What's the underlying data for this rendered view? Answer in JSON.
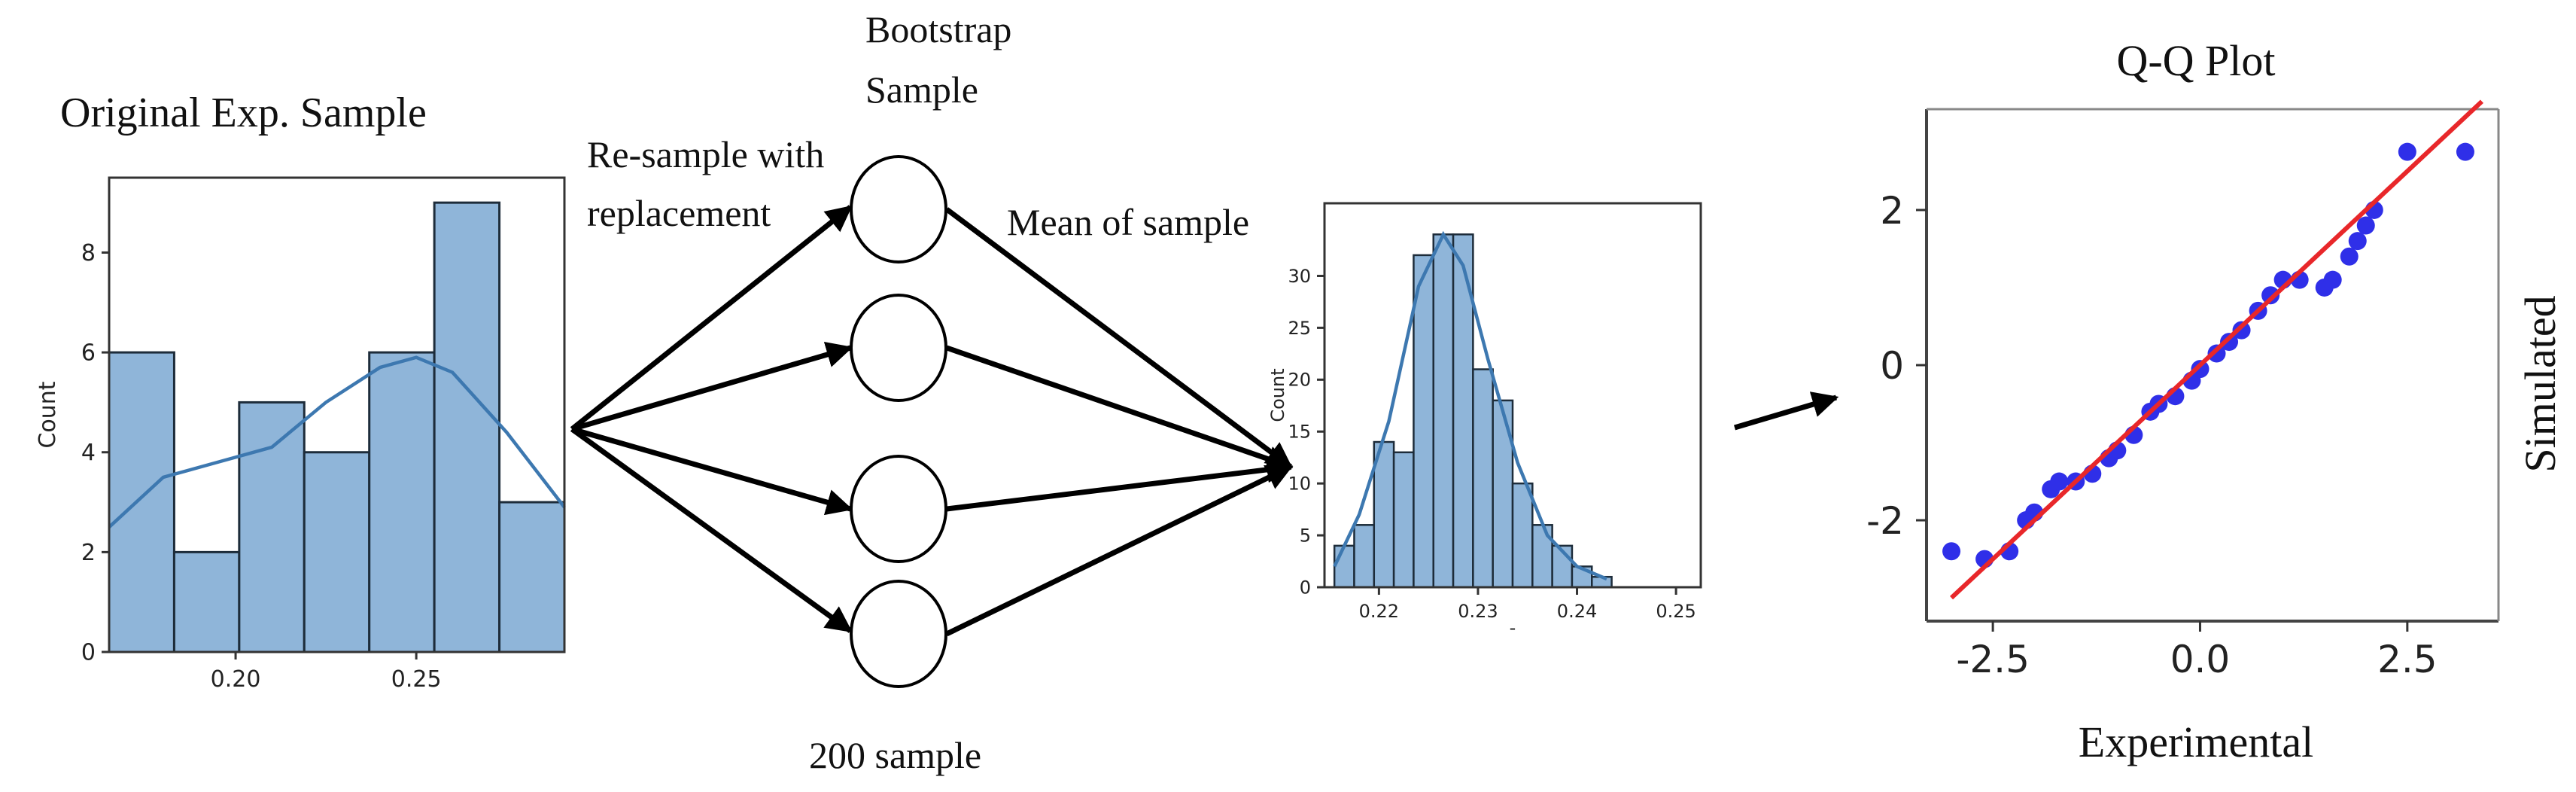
{
  "labels": {
    "original_sample": "Original Exp. Sample",
    "resample_line1": "Re-sample with",
    "resample_line2": "replacement",
    "bootstrap_line1": "Bootstrap",
    "bootstrap_line2": "Sample",
    "mean_of_sample": "Mean of sample",
    "sample_count": "200 sample",
    "qq_title": "Q-Q Plot",
    "qq_xlabel": "Experimental",
    "qq_ylabel": "Simulated"
  },
  "chart_data": [
    {
      "type": "bar",
      "title": "",
      "xlabel": "",
      "ylabel": "Count",
      "bins": [
        {
          "start": 0.165,
          "end": 0.183,
          "count": 6
        },
        {
          "start": 0.183,
          "end": 0.201,
          "count": 2
        },
        {
          "start": 0.201,
          "end": 0.219,
          "count": 5
        },
        {
          "start": 0.219,
          "end": 0.237,
          "count": 4
        },
        {
          "start": 0.237,
          "end": 0.255,
          "count": 6
        },
        {
          "start": 0.255,
          "end": 0.273,
          "count": 9
        },
        {
          "start": 0.273,
          "end": 0.291,
          "count": 3
        }
      ],
      "xlim": [
        0.165,
        0.291
      ],
      "ylim": [
        0,
        9.5
      ],
      "xticks": [
        "0.20",
        "0.25"
      ],
      "yticks": [
        "0",
        "2",
        "4",
        "6",
        "8"
      ],
      "kde": [
        [
          0.165,
          2.5
        ],
        [
          0.18,
          3.5
        ],
        [
          0.195,
          3.8
        ],
        [
          0.21,
          4.1
        ],
        [
          0.225,
          5.0
        ],
        [
          0.24,
          5.7
        ],
        [
          0.25,
          5.9
        ],
        [
          0.26,
          5.6
        ],
        [
          0.275,
          4.4
        ],
        [
          0.291,
          2.9
        ]
      ]
    },
    {
      "type": "bar",
      "title": "",
      "xlabel": "-",
      "ylabel": "Count",
      "bins": [
        {
          "start": 0.2155,
          "end": 0.2175,
          "count": 4
        },
        {
          "start": 0.2175,
          "end": 0.2195,
          "count": 6
        },
        {
          "start": 0.2195,
          "end": 0.2215,
          "count": 14
        },
        {
          "start": 0.2215,
          "end": 0.2235,
          "count": 13
        },
        {
          "start": 0.2235,
          "end": 0.2255,
          "count": 32
        },
        {
          "start": 0.2255,
          "end": 0.2275,
          "count": 34
        },
        {
          "start": 0.2275,
          "end": 0.2295,
          "count": 34
        },
        {
          "start": 0.2295,
          "end": 0.2315,
          "count": 21
        },
        {
          "start": 0.2315,
          "end": 0.2335,
          "count": 18
        },
        {
          "start": 0.2335,
          "end": 0.2355,
          "count": 10
        },
        {
          "start": 0.2355,
          "end": 0.2375,
          "count": 6
        },
        {
          "start": 0.2375,
          "end": 0.2395,
          "count": 4
        },
        {
          "start": 0.2395,
          "end": 0.2415,
          "count": 2
        },
        {
          "start": 0.2415,
          "end": 0.2435,
          "count": 1
        }
      ],
      "xlim": [
        0.2145,
        0.2525
      ],
      "ylim": [
        0,
        37
      ],
      "xticks": [
        "0.22",
        "0.23",
        "0.24",
        "0.25"
      ],
      "yticks": [
        "0",
        "5",
        "10",
        "15",
        "20",
        "25",
        "30"
      ],
      "kde": [
        [
          0.2155,
          2
        ],
        [
          0.218,
          7
        ],
        [
          0.221,
          16
        ],
        [
          0.224,
          29
        ],
        [
          0.2265,
          34
        ],
        [
          0.2285,
          31
        ],
        [
          0.231,
          22
        ],
        [
          0.234,
          12
        ],
        [
          0.237,
          5
        ],
        [
          0.24,
          2
        ],
        [
          0.243,
          0.8
        ]
      ]
    },
    {
      "type": "scatter",
      "title": "Q-Q Plot",
      "xlabel": "Experimental",
      "ylabel": "Simulated",
      "xlim": [
        -3.3,
        3.6
      ],
      "ylim": [
        -3.3,
        3.3
      ],
      "xticks": [
        "-2.5",
        "0.0",
        "2.5"
      ],
      "yticks": [
        "-2",
        "0",
        "2"
      ],
      "line": {
        "x": [
          -3.0,
          3.4
        ],
        "y": [
          -3.0,
          3.4
        ]
      },
      "points": [
        [
          -3.0,
          -2.4
        ],
        [
          -2.6,
          -2.5
        ],
        [
          -2.3,
          -2.4
        ],
        [
          -2.1,
          -2.0
        ],
        [
          -2.0,
          -1.9
        ],
        [
          -1.8,
          -1.6
        ],
        [
          -1.7,
          -1.5
        ],
        [
          -1.5,
          -1.5
        ],
        [
          -1.3,
          -1.4
        ],
        [
          -1.1,
          -1.2
        ],
        [
          -1.0,
          -1.1
        ],
        [
          -0.8,
          -0.9
        ],
        [
          -0.6,
          -0.6
        ],
        [
          -0.5,
          -0.5
        ],
        [
          -0.3,
          -0.4
        ],
        [
          -0.1,
          -0.2
        ],
        [
          0.0,
          -0.05
        ],
        [
          0.2,
          0.15
        ],
        [
          0.35,
          0.3
        ],
        [
          0.5,
          0.45
        ],
        [
          0.7,
          0.7
        ],
        [
          0.85,
          0.9
        ],
        [
          1.0,
          1.1
        ],
        [
          1.2,
          1.1
        ],
        [
          1.5,
          1.0
        ],
        [
          1.6,
          1.1
        ],
        [
          1.8,
          1.4
        ],
        [
          1.9,
          1.6
        ],
        [
          2.0,
          1.8
        ],
        [
          2.1,
          2.0
        ],
        [
          2.5,
          2.75
        ],
        [
          3.2,
          2.75
        ]
      ]
    }
  ]
}
